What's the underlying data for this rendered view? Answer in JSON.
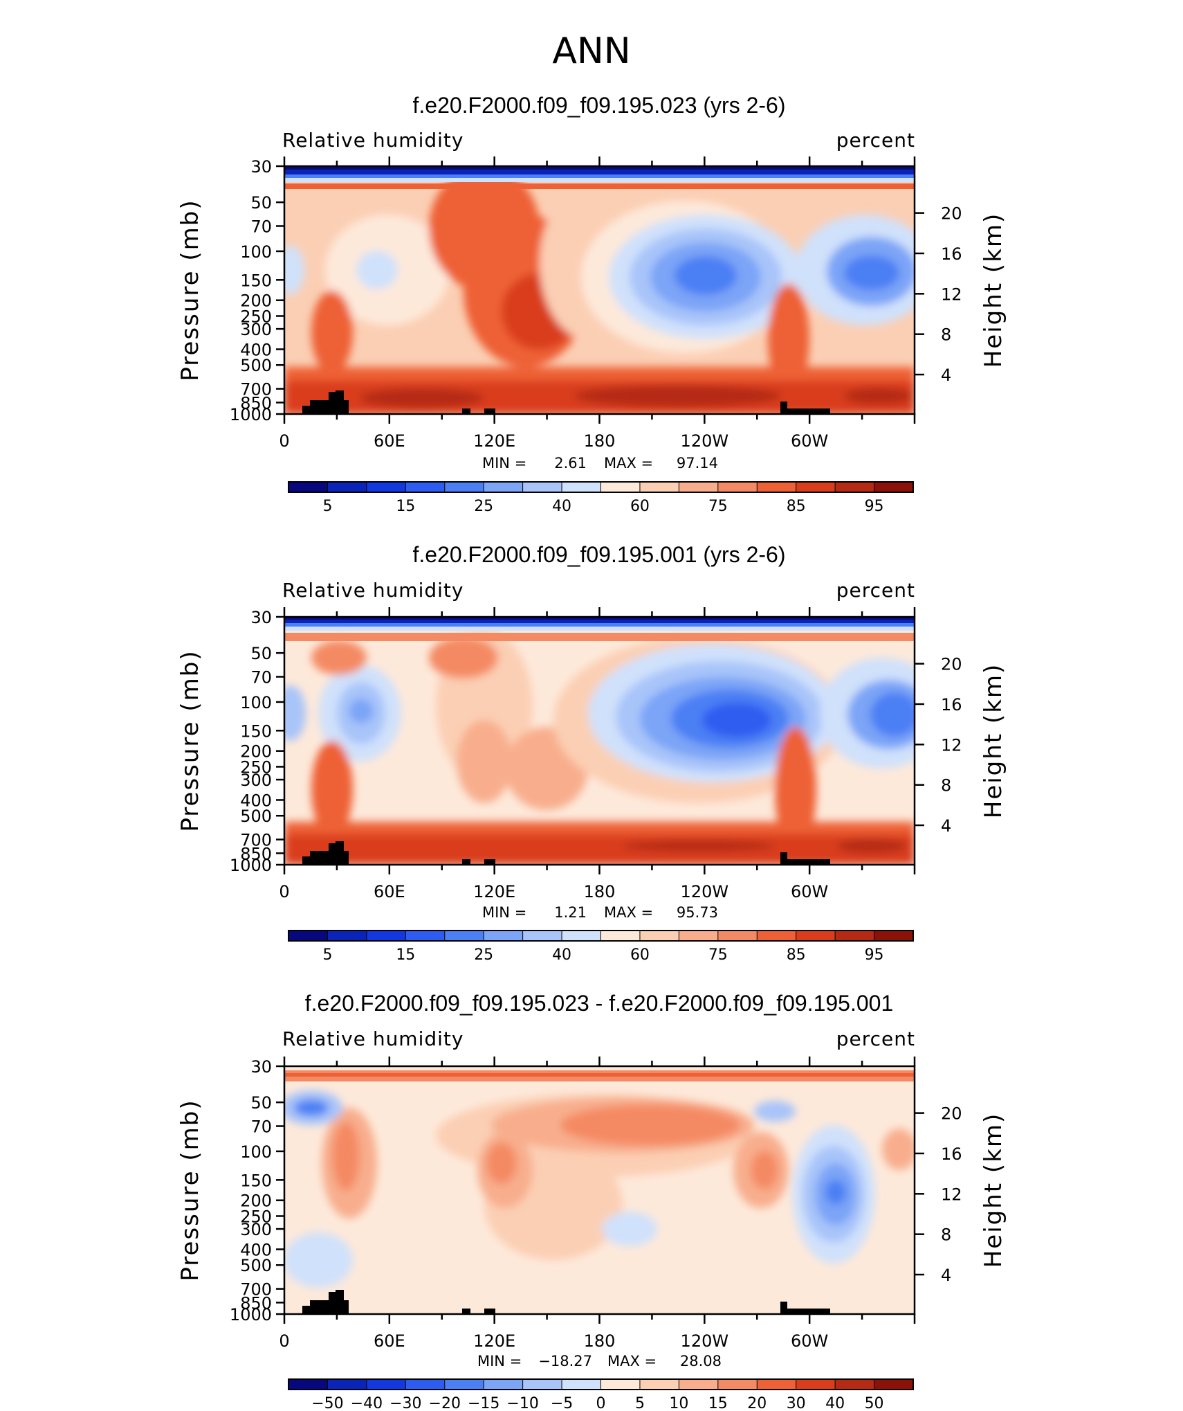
{
  "page_title": "ANN",
  "chart_data": [
    {
      "type": "heatmap",
      "title": "f.e20.F2000.f09_f09.195.023 (yrs 2-6)",
      "left_string": "Relative humidity",
      "right_string": "percent",
      "ylabel": "Pressure (mb)",
      "ylabel_right": "Height (km)",
      "x_ticks": [
        "0",
        "60E",
        "120E",
        "180",
        "120W",
        "60W"
      ],
      "x_range_deg": [
        0,
        360
      ],
      "y_ticks": [
        "30",
        "50",
        "70",
        "100",
        "150",
        "200",
        "250",
        "300",
        "400",
        "500",
        "700",
        "850",
        "1000"
      ],
      "y_range_mb": [
        1000,
        30
      ],
      "y_right_ticks": [
        "20",
        "16",
        "12",
        "8",
        "4"
      ],
      "min_label": "MIN =",
      "min_value": "2.61",
      "max_label": "MAX =",
      "max_value": "97.14",
      "colorbar_labels": [
        "5",
        "15",
        "25",
        "40",
        "60",
        "75",
        "85",
        "95"
      ],
      "colorbar_colors": [
        "#08087e",
        "#0b24b8",
        "#1438df",
        "#2d5df0",
        "#4b7ff4",
        "#7ca4f7",
        "#a8c4f9",
        "#d0e1fb",
        "#fde9da",
        "#fbcfb4",
        "#f8ae8d",
        "#f48a63",
        "#ee6035",
        "#d93d1c",
        "#b52a14",
        "#8b1208"
      ]
    },
    {
      "type": "heatmap",
      "title": "f.e20.F2000.f09_f09.195.001 (yrs 2-6)",
      "left_string": "Relative humidity",
      "right_string": "percent",
      "ylabel": "Pressure (mb)",
      "ylabel_right": "Height (km)",
      "x_ticks": [
        "0",
        "60E",
        "120E",
        "180",
        "120W",
        "60W"
      ],
      "x_range_deg": [
        0,
        360
      ],
      "y_ticks": [
        "30",
        "50",
        "70",
        "100",
        "150",
        "200",
        "250",
        "300",
        "400",
        "500",
        "700",
        "850",
        "1000"
      ],
      "y_range_mb": [
        1000,
        30
      ],
      "y_right_ticks": [
        "20",
        "16",
        "12",
        "8",
        "4"
      ],
      "min_label": "MIN =",
      "min_value": "1.21",
      "max_label": "MAX =",
      "max_value": "95.73",
      "colorbar_labels": [
        "5",
        "15",
        "25",
        "40",
        "60",
        "75",
        "85",
        "95"
      ],
      "colorbar_colors": [
        "#08087e",
        "#0b24b8",
        "#1438df",
        "#2d5df0",
        "#4b7ff4",
        "#7ca4f7",
        "#a8c4f9",
        "#d0e1fb",
        "#fde9da",
        "#fbcfb4",
        "#f8ae8d",
        "#f48a63",
        "#ee6035",
        "#d93d1c",
        "#b52a14",
        "#8b1208"
      ]
    },
    {
      "type": "heatmap",
      "title": "f.e20.F2000.f09_f09.195.023 - f.e20.F2000.f09_f09.195.001",
      "left_string": "Relative humidity",
      "right_string": "percent",
      "ylabel": "Pressure (mb)",
      "ylabel_right": "Height (km)",
      "x_ticks": [
        "0",
        "60E",
        "120E",
        "180",
        "120W",
        "60W"
      ],
      "x_range_deg": [
        0,
        360
      ],
      "y_ticks": [
        "30",
        "50",
        "70",
        "100",
        "150",
        "200",
        "250",
        "300",
        "400",
        "500",
        "700",
        "850",
        "1000"
      ],
      "y_range_mb": [
        1000,
        30
      ],
      "y_right_ticks": [
        "20",
        "16",
        "12",
        "8",
        "4"
      ],
      "min_label": "MIN =",
      "min_value": "−18.27",
      "max_label": "MAX =",
      "max_value": "28.08",
      "colorbar_labels": [
        "−50",
        "−40",
        "−30",
        "−20",
        "−15",
        "−10",
        "−5",
        "0",
        "5",
        "10",
        "15",
        "20",
        "30",
        "40",
        "50"
      ],
      "colorbar_colors": [
        "#08087e",
        "#0b24b8",
        "#1438df",
        "#2d5df0",
        "#4b7ff4",
        "#7ca4f7",
        "#a8c4f9",
        "#d0e1fb",
        "#fde9da",
        "#fbcfb4",
        "#f8ae8d",
        "#f48a63",
        "#ee6035",
        "#d93d1c",
        "#b52a14",
        "#8b1208"
      ]
    }
  ]
}
